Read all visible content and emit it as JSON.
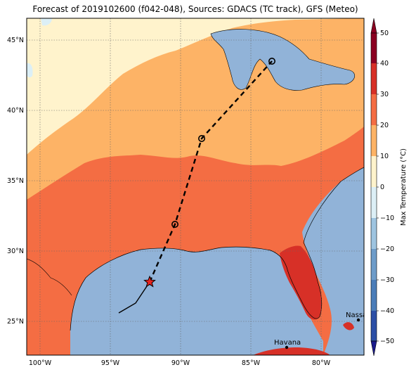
{
  "title": "Forecast of 2019102600 (f042-048), Sources: GDACS (TC track), GFS (Meteo)",
  "map": {
    "x_ticks": [
      "100°W",
      "95°W",
      "90°W",
      "85°W",
      "80°W"
    ],
    "y_ticks": [
      "45°N",
      "40°N",
      "35°N",
      "30°N",
      "25°N"
    ],
    "grid": "dotted"
  },
  "colorbar": {
    "label": "Max Temperature (°C)",
    "ticks": [
      "50",
      "40",
      "30",
      "20",
      "10",
      "0",
      "−10",
      "−20",
      "−30",
      "−40",
      "−50"
    ],
    "colors": {
      "-50": "#1a1a8c",
      "-40": "#2c4fa6",
      "-30": "#4b7db8",
      "-20": "#6e9cc9",
      "-10": "#9ec4e0",
      "0": "#dceff6",
      "10": "#fff3cc",
      "20": "#fdb366",
      "30": "#f46d43",
      "40": "#d73027",
      "50": "#8b0021"
    }
  },
  "cities": [
    {
      "name": "Nassau"
    },
    {
      "name": "Havana"
    }
  ],
  "track": {
    "points": [
      {
        "lon": -94.4,
        "lat": 25.6,
        "type": "past"
      },
      {
        "lon": -93.2,
        "lat": 26.3,
        "type": "past"
      },
      {
        "lon": -92.2,
        "lat": 27.8,
        "type": "current"
      },
      {
        "lon": -90.4,
        "lat": 31.9,
        "type": "forecast"
      },
      {
        "lon": -88.5,
        "lat": 38.0,
        "type": "forecast"
      },
      {
        "lon": -83.5,
        "lat": 43.5,
        "type": "forecast"
      }
    ]
  }
}
